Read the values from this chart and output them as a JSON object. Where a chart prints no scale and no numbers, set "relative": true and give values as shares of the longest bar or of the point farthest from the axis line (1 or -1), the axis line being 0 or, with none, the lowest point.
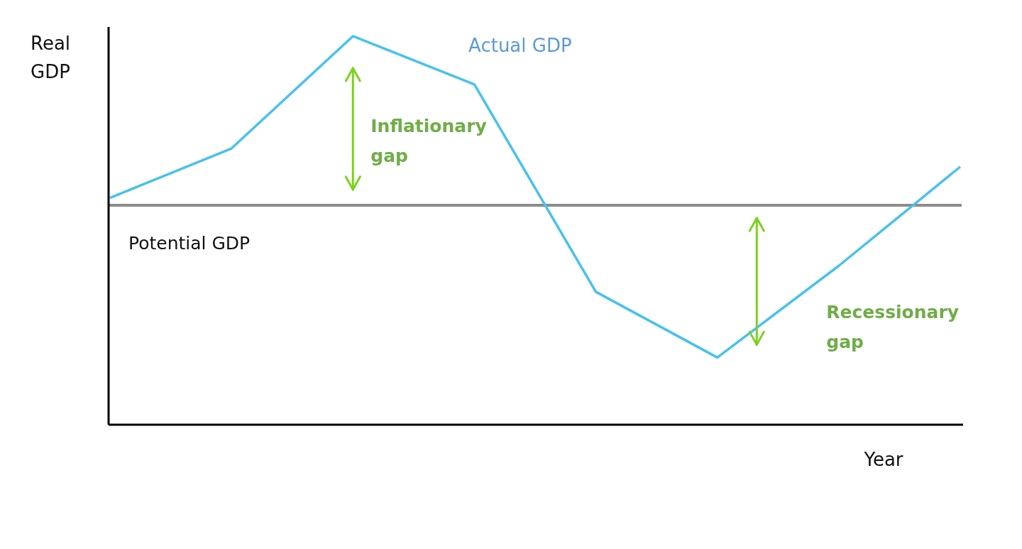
{
  "chart_data": {
    "type": "line",
    "relative": true,
    "xlabel": "Year",
    "ylabel": "Real GDP",
    "categories": [
      null,
      null,
      null,
      null,
      null,
      null,
      null,
      null
    ],
    "series": [
      {
        "name": "Actual GDP",
        "color": "#47c1f0",
        "values": [
          0.584,
          0.711,
          1,
          0.876,
          0.342,
          0.173,
          0.409,
          0.664
        ]
      }
    ],
    "ref_lines": [
      {
        "axis": "y",
        "value": 0.565,
        "label": "Potential GDP",
        "color": "#8c8c8c"
      }
    ],
    "annotations": [
      "Inflationary gap",
      "Recessionary gap"
    ],
    "line_style": "solid"
  }
}
